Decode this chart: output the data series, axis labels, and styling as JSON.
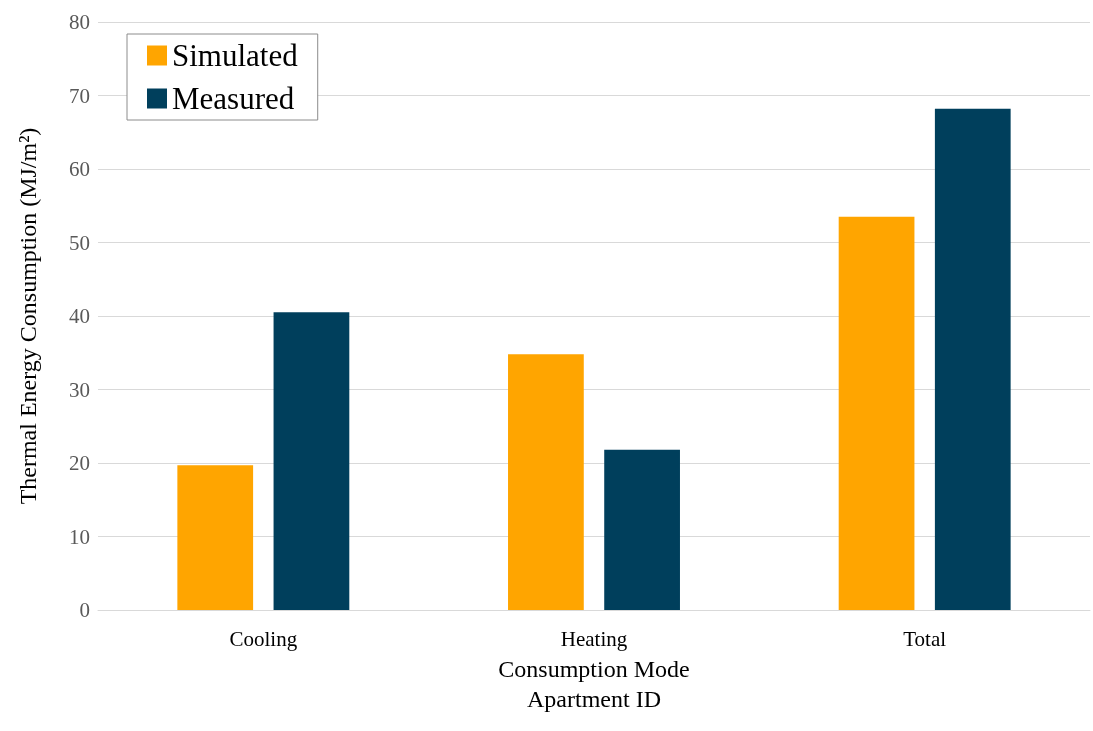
{
  "chart_data": {
    "type": "bar",
    "xlabel": "Consumption Mode\nApartment ID",
    "ylabel": "Thermal Energy Consumption (MJ/m²)",
    "categories": [
      "Cooling",
      "Heating",
      "Total"
    ],
    "series": [
      {
        "name": "Simulated",
        "color": "#ffa500",
        "values": [
          19.7,
          34.8,
          53.5
        ]
      },
      {
        "name": "Measured",
        "color": "#003f5c",
        "values": [
          40.5,
          21.8,
          68.2
        ]
      }
    ],
    "ylim": [
      0,
      80
    ],
    "yticks": [
      0,
      10,
      20,
      30,
      40,
      50,
      60,
      70,
      80
    ],
    "grid": "y",
    "legend": "top left"
  }
}
